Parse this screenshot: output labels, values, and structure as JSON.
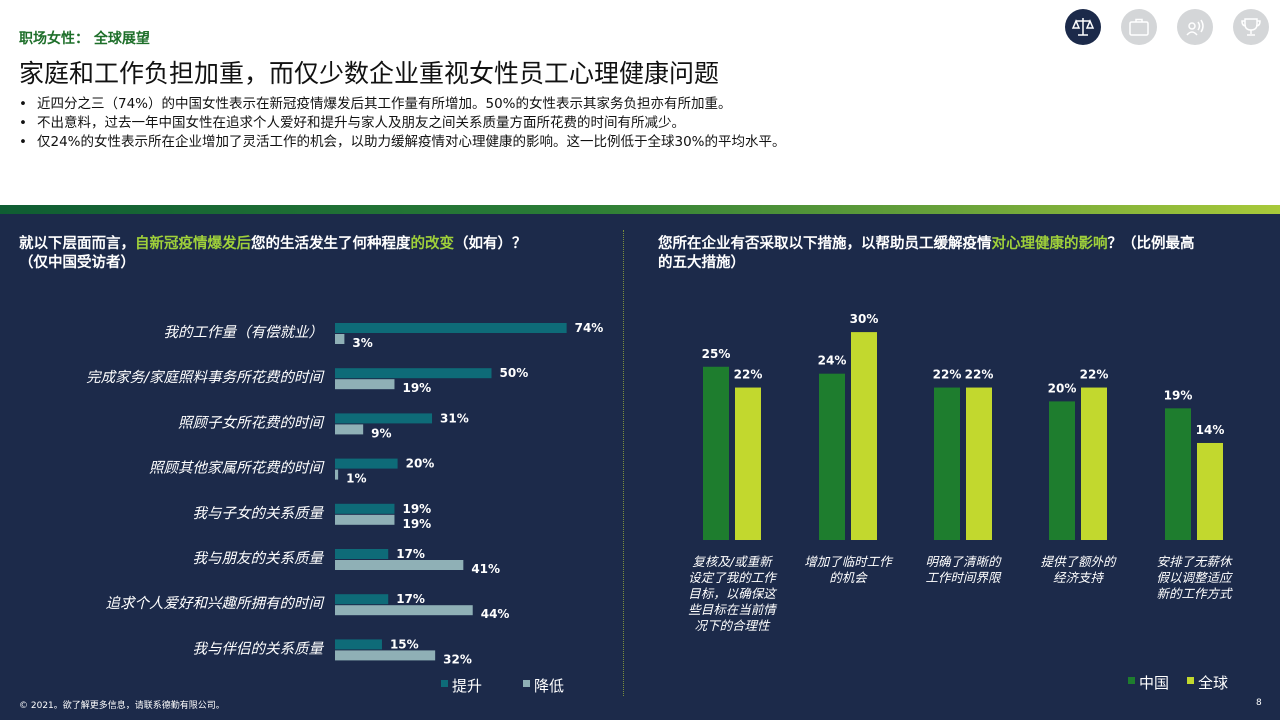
{
  "header": {
    "section": "职场女性： 全球展望",
    "title": "家庭和工作负担加重，而仅少数企业重视女性员工心理健康问题",
    "bullets": [
      "近四分之三（74%）的中国女性表示在新冠疫情爆发后其工作量有所增加。50%的女性表示其家务负担亦有所加重。",
      "不出意料，过去一年中国女性在追求个人爱好和提升与家人及朋友之间关系质量方面所花费的时间有所减少。",
      "仅24%的女性表示所在企业增加了灵活工作的机会，以助力缓解疫情对心理健康的影响。这一比例低于全球30%的平均水平。"
    ],
    "nav_icons": [
      "balance-scale-icon",
      "briefcase-icon",
      "podcast-icon",
      "trophy-icon"
    ]
  },
  "left_question": {
    "p1": "就以下层面而言，",
    "p2": "自新冠疫情爆发后",
    "p3": "您的生活发生了何种程度",
    "p4": "的改变",
    "p5": "（如有）？",
    "line2": "（仅中国受访者）"
  },
  "right_question": {
    "p1": "您所在企业有否采取以下措施，以帮助员工缓解疫情",
    "p2": "对心理健康的影响",
    "p3": "？（比例最高",
    "line2": "的五大措施）"
  },
  "chart_data": [
    {
      "type": "bar",
      "orientation": "horizontal",
      "categories": [
        "我的工作量（有偿就业）",
        "完成家务/家庭照料事务所花费的时间",
        "照顾子女所花费的时间",
        "照顾其他家属所花费的时间",
        "我与子女的关系质量",
        "我与朋友的关系质量",
        "追求个人爱好和兴趣所拥有的时间",
        "我与伴侣的关系质量"
      ],
      "series": [
        {
          "name": "提升",
          "color": "#0e6b78",
          "values": [
            74,
            50,
            31,
            20,
            19,
            17,
            17,
            15
          ]
        },
        {
          "name": "降低",
          "color": "#8fb0b6",
          "values": [
            3,
            19,
            9,
            1,
            19,
            41,
            44,
            32
          ]
        }
      ],
      "unit": "%",
      "legend": "bottom-right"
    },
    {
      "type": "bar",
      "orientation": "vertical",
      "categories": [
        [
          "复核及/或重新",
          "设定了我的工作",
          "目标，以确保这",
          "些目标在当前情",
          "况下的合理性"
        ],
        [
          "增加了临时工作",
          "的机会"
        ],
        [
          "明确了清晰的",
          "工作时间界限"
        ],
        [
          "提供了额外的",
          "经济支持"
        ],
        [
          "安排了无薪休",
          "假以调整适应",
          "新的工作方式"
        ]
      ],
      "series": [
        {
          "name": "中国",
          "color": "#1e7d2e",
          "values": [
            25,
            24,
            22,
            20,
            19
          ]
        },
        {
          "name": "全球",
          "color": "#c2d82e",
          "values": [
            22,
            30,
            22,
            22,
            14
          ]
        }
      ],
      "unit": "%",
      "legend": "bottom-right"
    }
  ],
  "footer": {
    "copyright": "© 2021。欲了解更多信息，请联系德勤有限公司。",
    "page": "8"
  }
}
